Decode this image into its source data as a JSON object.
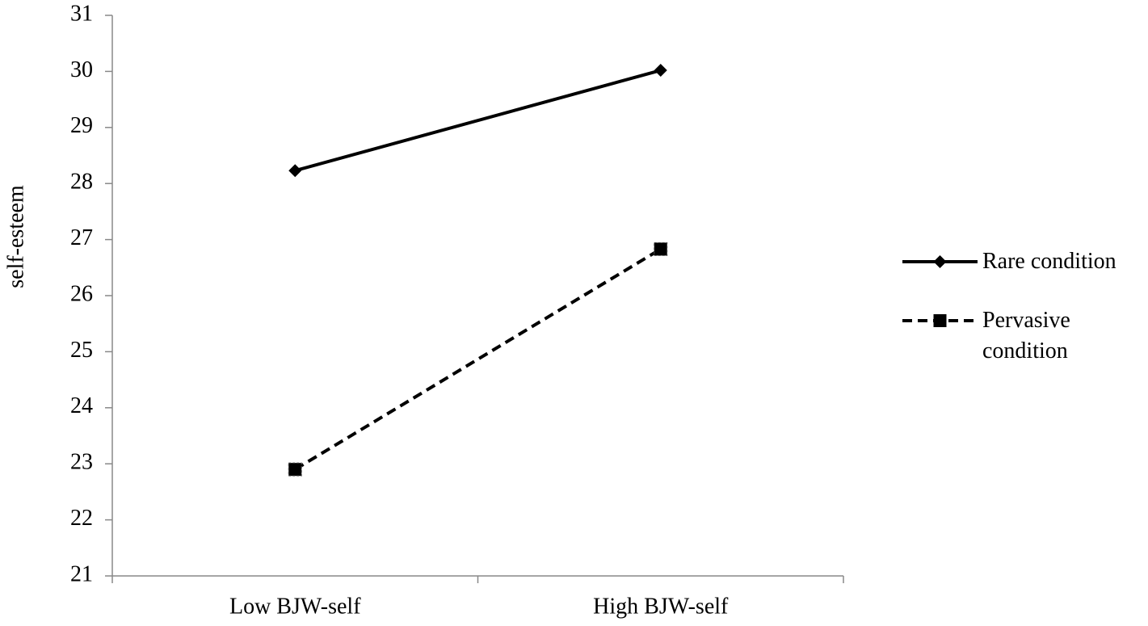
{
  "chart_data": {
    "type": "line",
    "y_label": "self-esteem",
    "categories": [
      "Low BJW-self",
      "High BJW-self"
    ],
    "series": [
      {
        "name": "Rare condition",
        "color": "#000000",
        "dashed": false,
        "marker": "diamond",
        "values": [
          28.23,
          30.02
        ]
      },
      {
        "name": "Pervasive condition",
        "color": "#000000",
        "dashed": true,
        "marker": "square",
        "values": [
          22.9,
          26.83
        ]
      }
    ],
    "ylim": [
      21,
      31
    ],
    "yticks": [
      21,
      22,
      23,
      24,
      25,
      26,
      27,
      28,
      29,
      30,
      31
    ],
    "grid": false,
    "legend": "right"
  }
}
